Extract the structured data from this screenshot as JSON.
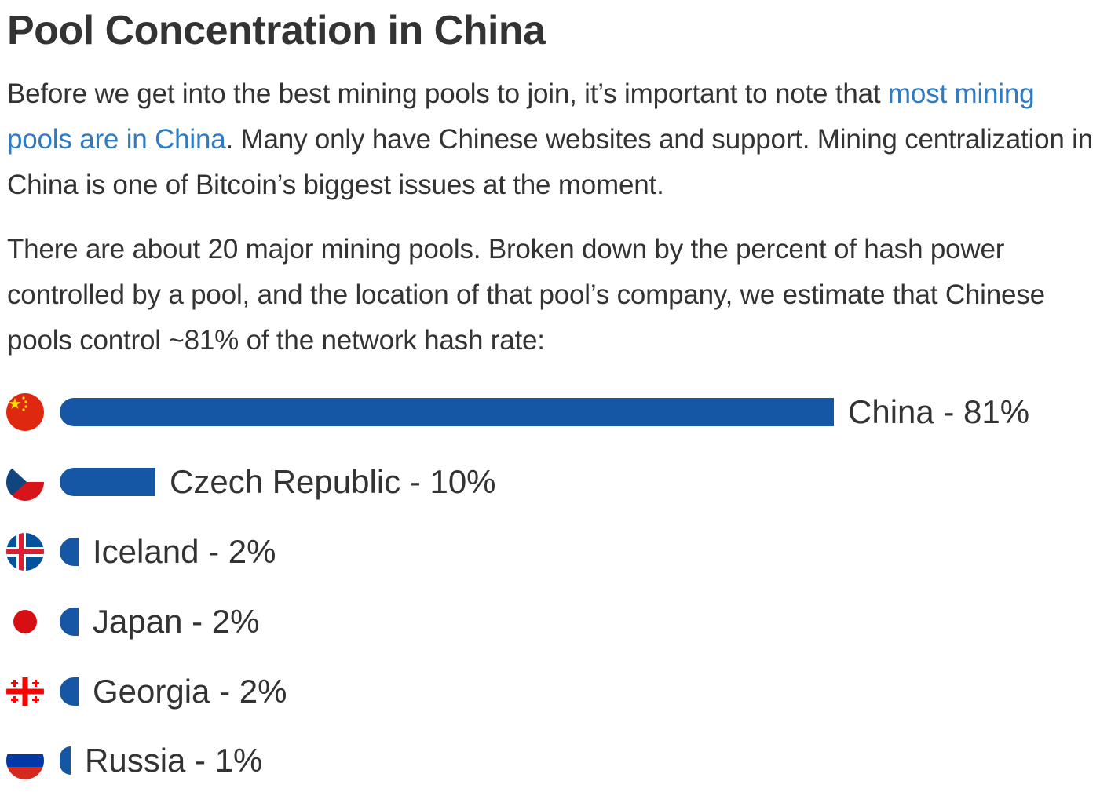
{
  "article": {
    "title": "Pool Concentration in China",
    "p1_before": "Before we get into the best mining pools to join, it’s important to note that ",
    "p1_link": "most mining pools are in China",
    "p1_after": ". Many only have Chinese websites and support. Mining centralization in China is one of Bitcoin’s biggest issues at the moment.",
    "p2": "There are about 20 major mining pools. Broken down by the percent of hash power controlled by a pool, and the location of that pool’s company, we estimate that Chinese pools control ~81% of the network hash rate:"
  },
  "colors": {
    "bar": "#1557a5",
    "link": "#2e7bc4",
    "text": "#333333"
  },
  "chart_data": {
    "type": "bar",
    "orientation": "horizontal",
    "categories": [
      "China",
      "Czech Republic",
      "Iceland",
      "Japan",
      "Georgia",
      "Russia"
    ],
    "values": [
      81,
      10,
      2,
      2,
      2,
      1
    ],
    "labels": [
      "China - 81%",
      "Czech Republic - 10%",
      "Iceland - 2%",
      "Japan - 2%",
      "Georgia - 2%",
      "Russia - 1%"
    ],
    "flag_icons": [
      "china-flag-icon",
      "czech-flag-icon",
      "iceland-flag-icon",
      "japan-flag-icon",
      "georgia-flag-icon",
      "russia-flag-icon"
    ]
  }
}
